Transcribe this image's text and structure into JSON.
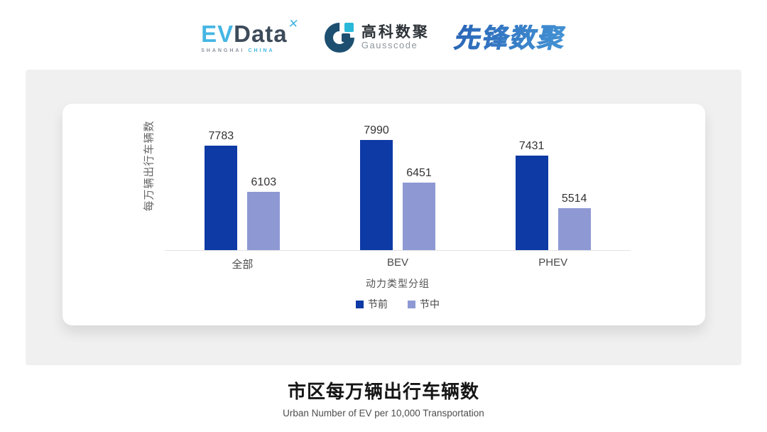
{
  "logos": {
    "evdata": {
      "part1": "EV",
      "part2": "Data",
      "mark": "✕",
      "sub1": "SHANGHAI",
      "sub2": "CHINA"
    },
    "gausscode": {
      "name_cn": "高科数聚",
      "name_en": "Gausscode"
    },
    "pioneer": {
      "name": "先锋数聚"
    }
  },
  "chart_data": {
    "type": "bar",
    "title": "市区每万辆出行车辆数",
    "subtitle": "Urban Number of EV per 10,000 Transportation",
    "categories": [
      "全部",
      "BEV",
      "PHEV"
    ],
    "series": [
      {
        "name": "节前",
        "color": "#0d3aa5",
        "values": [
          7783,
          7990,
          7431
        ]
      },
      {
        "name": "节中",
        "color": "#8e99d3",
        "values": [
          6103,
          6451,
          5514
        ]
      }
    ],
    "xlabel": "动力类型分组",
    "ylabel": "每万辆出行车辆数",
    "ylim": [
      4000,
      9400
    ],
    "grid": false,
    "legend_position": "bottom",
    "value_labels": true
  },
  "footer": {
    "title": "市区每万辆出行车辆数",
    "subtitle": "Urban Number of EV per 10,000 Transportation"
  },
  "colors": {
    "evdata_cyan": "#45b6e3",
    "evdata_dark": "#3d4b5a",
    "gausscode_dark": "#1d4f71",
    "gausscode_cyan": "#29b8d8",
    "pioneer_gradient_start": "#2a66b8",
    "pioneer_gradient_end": "#4aa0dd",
    "panel_bg": "#f0f0f1"
  }
}
